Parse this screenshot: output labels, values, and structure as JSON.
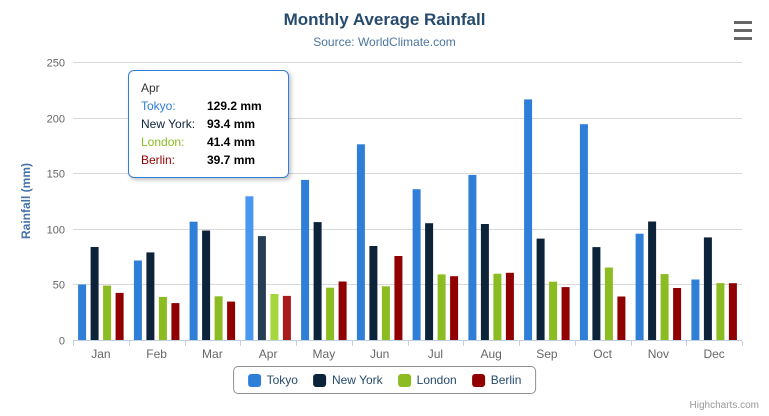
{
  "title": "Monthly Average Rainfall",
  "subtitle": "Source: WorldClimate.com",
  "credits": "Highcharts.com",
  "icons": {
    "context_menu": "hamburger-menu-icon"
  },
  "colors": {
    "title": "#274b6d",
    "subtitle": "#4d759e",
    "grid": "#d8d8d8",
    "axis_line": "#c0d0e0",
    "axis_label": "#666666",
    "y_title": "#4572a7",
    "legend_border": "#909090",
    "legend_text": "#274b6d",
    "credits": "#999999",
    "tooltip_border": "#2f7ed8"
  },
  "chart_data": {
    "type": "bar",
    "title": "Monthly Average Rainfall",
    "subtitle": "Source: WorldClimate.com",
    "xlabel": "",
    "ylabel": "Rainfall (mm)",
    "ylim": [
      0,
      250
    ],
    "ytick_interval": 50,
    "grid": true,
    "legend_position": "bottom",
    "categories": [
      "Jan",
      "Feb",
      "Mar",
      "Apr",
      "May",
      "Jun",
      "Jul",
      "Aug",
      "Sep",
      "Oct",
      "Nov",
      "Dec"
    ],
    "series": [
      {
        "name": "Tokyo",
        "color": "#2f7ed8",
        "hover_color": "#4997f1",
        "values": [
          49.9,
          71.5,
          106.4,
          129.2,
          144.0,
          176.0,
          135.6,
          148.5,
          216.4,
          194.1,
          95.6,
          54.4
        ]
      },
      {
        "name": "New York",
        "color": "#0d233a",
        "hover_color": "#273d54",
        "values": [
          83.6,
          78.8,
          98.5,
          93.4,
          106.0,
          84.5,
          105.0,
          104.3,
          91.2,
          83.5,
          106.6,
          92.3
        ]
      },
      {
        "name": "London",
        "color": "#8bbc21",
        "hover_color": "#a5d63b",
        "values": [
          48.9,
          38.8,
          39.3,
          41.4,
          47.0,
          48.3,
          59.0,
          59.6,
          52.4,
          65.2,
          59.3,
          51.2
        ]
      },
      {
        "name": "Berlin",
        "color": "#910000",
        "hover_color": "#ab1a1a",
        "values": [
          42.4,
          33.2,
          34.5,
          39.7,
          52.6,
          75.5,
          57.4,
          60.4,
          47.6,
          39.1,
          46.8,
          51.1
        ]
      }
    ],
    "hovered_category": "Apr",
    "hovered_index": 3
  },
  "tooltip": {
    "header": "Apr",
    "rows": [
      {
        "label": "Tokyo:",
        "value": "129.2 mm"
      },
      {
        "label": "New York:",
        "value": "93.4 mm"
      },
      {
        "label": "London:",
        "value": "41.4 mm"
      },
      {
        "label": "Berlin:",
        "value": "39.7 mm"
      }
    ]
  }
}
